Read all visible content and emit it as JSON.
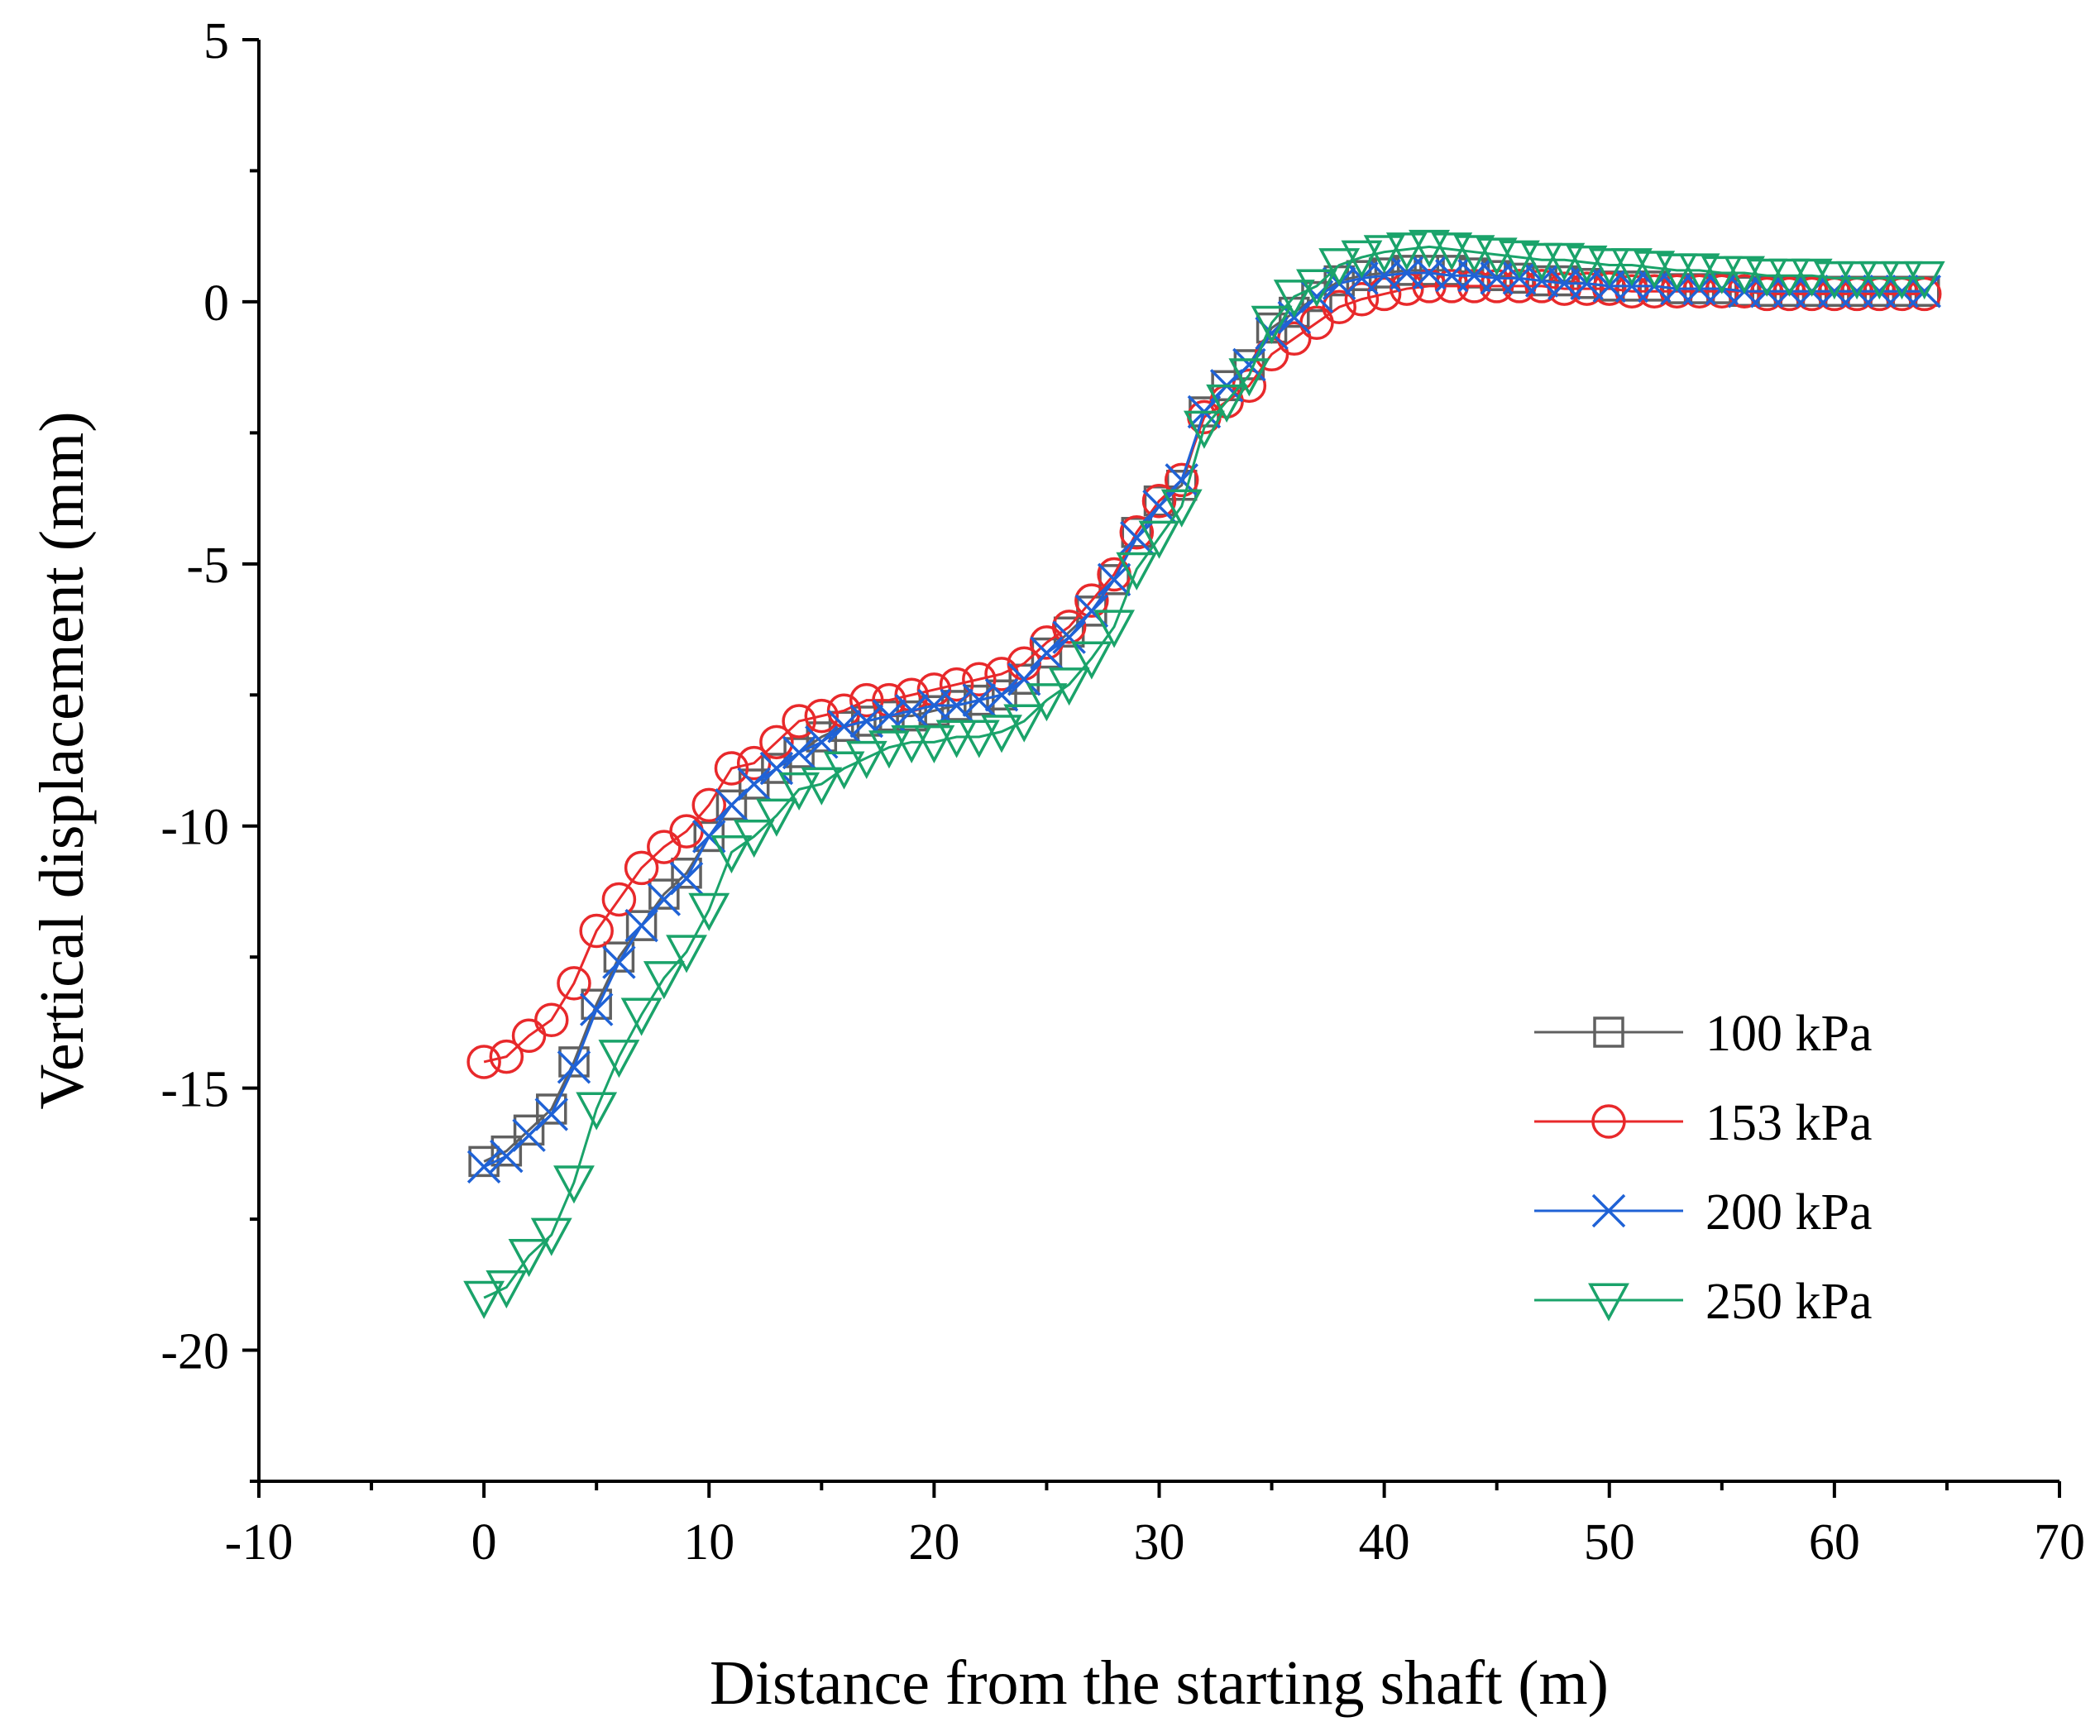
{
  "chart_data": {
    "type": "line",
    "title": "",
    "xlabel": "Distance from the starting shaft (m)",
    "ylabel": "Vertical displacement (mm)",
    "xlim": [
      -10,
      70
    ],
    "ylim": [
      -22.5,
      5
    ],
    "xticks": [
      -10,
      0,
      10,
      20,
      30,
      40,
      50,
      60,
      70
    ],
    "xtick_labels": [
      "-10",
      "0",
      "10",
      "20",
      "30",
      "40",
      "50",
      "60",
      "70"
    ],
    "yticks": [
      5,
      0,
      -5,
      -10,
      -15,
      -20
    ],
    "ytick_labels": [
      "5",
      "0",
      "-5",
      "-10",
      "-15",
      "-20"
    ],
    "grid": false,
    "legend_position": "bottom-right",
    "x": [
      0,
      1,
      2,
      3,
      4,
      5,
      6,
      7,
      8,
      9,
      10,
      11,
      12,
      13,
      14,
      15,
      16,
      17,
      18,
      19,
      20,
      21,
      22,
      23,
      24,
      25,
      26,
      27,
      28,
      29,
      30,
      31,
      32,
      33,
      34,
      35,
      36,
      37,
      38,
      39,
      40,
      41,
      42,
      43,
      44,
      45,
      46,
      47,
      48,
      49,
      50,
      51,
      52,
      53,
      54,
      55,
      56,
      57,
      58,
      59,
      60,
      61,
      62,
      63,
      64
    ],
    "series": [
      {
        "name": "100 kPa",
        "color": "#606060",
        "marker": "square",
        "values": [
          -16.4,
          -16.2,
          -15.8,
          -15.4,
          -14.5,
          -13.4,
          -12.5,
          -11.9,
          -11.3,
          -10.9,
          -10.2,
          -9.6,
          -9.2,
          -8.9,
          -8.6,
          -8.3,
          -8.1,
          -8.0,
          -7.9,
          -7.9,
          -7.8,
          -7.7,
          -7.6,
          -7.5,
          -7.2,
          -6.7,
          -6.3,
          -5.9,
          -5.3,
          -4.4,
          -3.8,
          -3.5,
          -2.1,
          -1.6,
          -1.2,
          -0.5,
          -0.2,
          0.1,
          0.4,
          0.5,
          0.55,
          0.6,
          0.6,
          0.6,
          0.55,
          0.5,
          0.45,
          0.4,
          0.4,
          0.35,
          0.3,
          0.3,
          0.3,
          0.25,
          0.25,
          0.25,
          0.2,
          0.2,
          0.2,
          0.2,
          0.2,
          0.2,
          0.2,
          0.2,
          0.2
        ]
      },
      {
        "name": "153 kPa",
        "color": "#e8292b",
        "marker": "circle",
        "values": [
          -14.5,
          -14.4,
          -14.0,
          -13.7,
          -13.0,
          -12.0,
          -11.4,
          -10.8,
          -10.4,
          -10.1,
          -9.6,
          -8.9,
          -8.8,
          -8.4,
          -8.0,
          -7.9,
          -7.8,
          -7.6,
          -7.6,
          -7.5,
          -7.4,
          -7.3,
          -7.2,
          -7.1,
          -6.9,
          -6.5,
          -6.2,
          -5.7,
          -5.2,
          -4.4,
          -3.8,
          -3.4,
          -2.2,
          -1.9,
          -1.6,
          -1.0,
          -0.7,
          -0.4,
          -0.1,
          0.05,
          0.15,
          0.25,
          0.3,
          0.3,
          0.3,
          0.3,
          0.3,
          0.3,
          0.25,
          0.25,
          0.25,
          0.2,
          0.2,
          0.2,
          0.2,
          0.2,
          0.2,
          0.15,
          0.15,
          0.15,
          0.15,
          0.15,
          0.15,
          0.15,
          0.15
        ]
      },
      {
        "name": "200 kPa",
        "color": "#1f62d6",
        "marker": "x",
        "values": [
          -16.5,
          -16.3,
          -15.9,
          -15.5,
          -14.6,
          -13.5,
          -12.6,
          -11.9,
          -11.4,
          -11.0,
          -10.2,
          -9.6,
          -9.2,
          -8.9,
          -8.6,
          -8.4,
          -8.1,
          -8.0,
          -7.9,
          -7.8,
          -7.7,
          -7.7,
          -7.6,
          -7.5,
          -7.2,
          -6.7,
          -6.4,
          -5.9,
          -5.3,
          -4.5,
          -3.9,
          -3.4,
          -2.1,
          -1.6,
          -1.2,
          -0.6,
          -0.3,
          0.1,
          0.35,
          0.45,
          0.5,
          0.55,
          0.55,
          0.5,
          0.5,
          0.45,
          0.45,
          0.4,
          0.35,
          0.35,
          0.3,
          0.3,
          0.3,
          0.25,
          0.25,
          0.25,
          0.2,
          0.2,
          0.2,
          0.2,
          0.2,
          0.2,
          0.2,
          0.2,
          0.2
        ]
      },
      {
        "name": "250 kPa",
        "color": "#1aa36a",
        "marker": "triangle-down",
        "values": [
          -19.0,
          -18.8,
          -18.2,
          -17.8,
          -16.8,
          -15.4,
          -14.4,
          -13.6,
          -12.9,
          -12.4,
          -11.6,
          -10.5,
          -10.2,
          -9.8,
          -9.3,
          -9.2,
          -8.9,
          -8.7,
          -8.5,
          -8.4,
          -8.4,
          -8.3,
          -8.3,
          -8.2,
          -8.0,
          -7.6,
          -7.3,
          -6.8,
          -6.2,
          -5.1,
          -4.5,
          -3.9,
          -2.4,
          -1.9,
          -1.4,
          -0.4,
          0.1,
          0.3,
          0.7,
          0.85,
          0.95,
          1.0,
          1.05,
          1.0,
          0.95,
          0.9,
          0.85,
          0.8,
          0.8,
          0.75,
          0.7,
          0.7,
          0.65,
          0.6,
          0.6,
          0.55,
          0.55,
          0.5,
          0.5,
          0.5,
          0.45,
          0.45,
          0.45,
          0.45,
          0.45
        ]
      }
    ]
  }
}
